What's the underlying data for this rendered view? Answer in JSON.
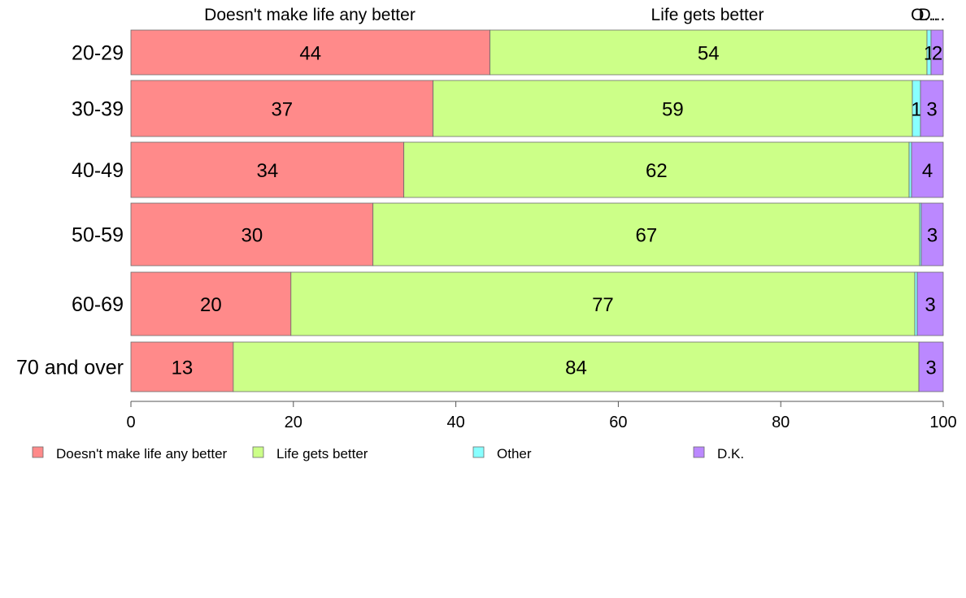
{
  "chart_data": {
    "type": "bar",
    "orientation": "horizontal",
    "stacked": true,
    "categories": [
      "20-29",
      "30-39",
      "40-49",
      "50-59",
      "60-69",
      "70 and over"
    ],
    "series": [
      {
        "name": "Doesn't make life any better",
        "color": "#ff8a8a",
        "values": [
          44.2,
          37.2,
          33.6,
          29.8,
          19.7,
          12.6
        ],
        "labels": [
          "44",
          "37",
          "34",
          "30",
          "20",
          "13"
        ]
      },
      {
        "name": "Life gets better",
        "color": "#ccff88",
        "values": [
          53.8,
          59.0,
          62.2,
          67.3,
          76.8,
          84.4
        ],
        "labels": [
          "54",
          "59",
          "62",
          "67",
          "77",
          "84"
        ]
      },
      {
        "name": "Other",
        "color": "#88ffff",
        "values": [
          0.5,
          1.0,
          0.3,
          0.2,
          0.3,
          0.0
        ],
        "labels": [
          "1",
          "1",
          "",
          "",
          "",
          ""
        ]
      },
      {
        "name": "D.K.",
        "color": "#bb88ff",
        "values": [
          1.5,
          2.8,
          3.9,
          2.7,
          3.2,
          3.0
        ],
        "labels": [
          "2",
          "3",
          "4",
          "3",
          "3",
          "3"
        ]
      }
    ],
    "top_labels": [
      "Doesn't make life any better",
      "Life gets better",
      "O...",
      "D..."
    ],
    "x_ticks": [
      "0",
      "20",
      "40",
      "60",
      "80",
      "100"
    ],
    "xlim": [
      0,
      100
    ],
    "grid": false,
    "legend_position": "bottom"
  }
}
